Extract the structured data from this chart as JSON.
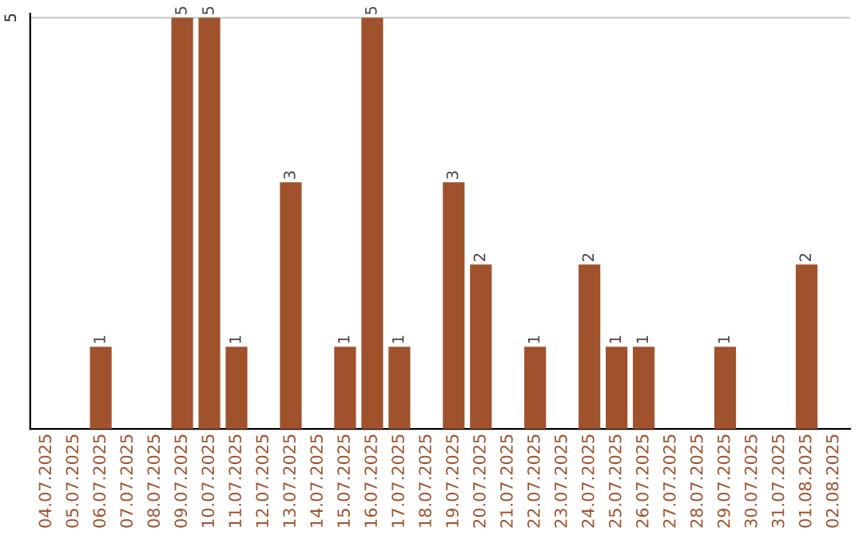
{
  "chart_data": {
    "type": "bar",
    "categories": [
      "04.07.2025",
      "05.07.2025",
      "06.07.2025",
      "07.07.2025",
      "08.07.2025",
      "09.07.2025",
      "10.07.2025",
      "11.07.2025",
      "12.07.2025",
      "13.07.2025",
      "14.07.2025",
      "15.07.2025",
      "16.07.2025",
      "17.07.2025",
      "18.07.2025",
      "19.07.2025",
      "20.07.2025",
      "21.07.2025",
      "22.07.2025",
      "23.07.2025",
      "24.07.2025",
      "25.07.2025",
      "26.07.2025",
      "27.07.2025",
      "28.07.2025",
      "29.07.2025",
      "30.07.2025",
      "31.07.2025",
      "01.08.2025",
      "02.08.2025"
    ],
    "values": [
      0,
      0,
      1,
      0,
      0,
      5,
      5,
      1,
      0,
      3,
      0,
      1,
      5,
      1,
      0,
      3,
      2,
      0,
      1,
      0,
      2,
      1,
      1,
      0,
      0,
      1,
      0,
      0,
      2,
      0
    ],
    "value_labels": [
      null,
      null,
      "1",
      null,
      null,
      "5",
      "5",
      "1",
      null,
      "3",
      null,
      "1",
      "5",
      "1",
      null,
      "3",
      "2",
      null,
      "1",
      null,
      "2",
      "1",
      "1",
      null,
      null,
      "1",
      null,
      null,
      "2",
      null
    ],
    "color": "#a0522d",
    "ylim": [
      0,
      5.05
    ],
    "yticks": [
      5
    ],
    "grid": "y",
    "legend": false
  }
}
